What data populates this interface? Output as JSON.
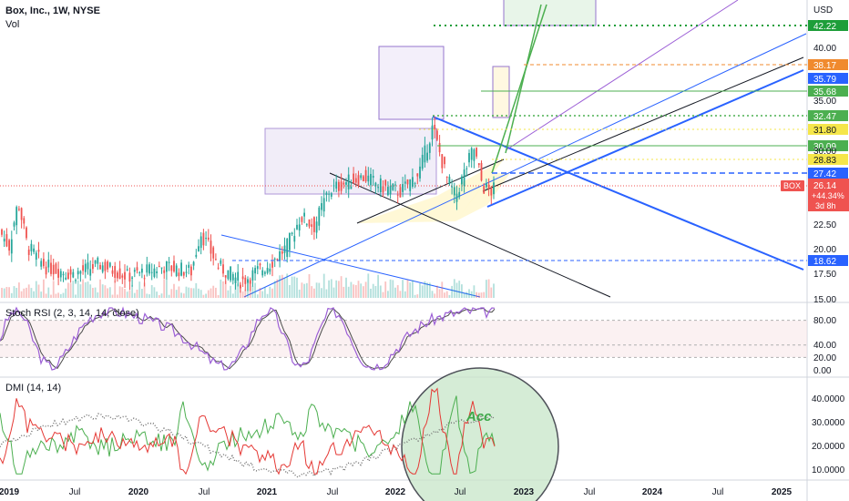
{
  "header": {
    "title": "Box, Inc., 1W, NYSE",
    "volume_label": "Vol",
    "currency": "USD",
    "rsi_label": "Stoch RSI (2, 3, 14, 14, close)",
    "dmi_label": "DMI (14, 14)",
    "annotation": "Acc"
  },
  "chart_data": {
    "type": "candlestick",
    "symbol": "BOX",
    "price_axis": {
      "ticks": [
        "40.00",
        "35.00",
        "30.00",
        "25.00",
        "22.50",
        "20.00",
        "17.50",
        "15.00"
      ],
      "ylim": [
        15,
        45
      ]
    },
    "rsi_axis": {
      "ticks": [
        "80.00",
        "40.00",
        "20.00",
        "0.00"
      ],
      "ylim": [
        0,
        100
      ]
    },
    "dmi_axis": {
      "ticks": [
        "40.0000",
        "30.0000",
        "20.0000",
        "10.0000"
      ],
      "ylim": [
        5,
        45
      ]
    },
    "time_axis": {
      "ticks": [
        "2019",
        "Jul",
        "2020",
        "Jul",
        "2021",
        "Jul",
        "2022",
        "Jul",
        "2023",
        "Jul",
        "2024",
        "Jul",
        "2025"
      ]
    },
    "last_price": {
      "symbol": "BOX",
      "price": "26.14",
      "change": "+44.34%",
      "countdown": "3d 8h"
    },
    "price_levels": [
      {
        "value": "42.22",
        "color": "#1e9e3a"
      },
      {
        "value": "38.17",
        "color": "#f08a2e"
      },
      {
        "value": "35.79",
        "color": "#2962ff"
      },
      {
        "value": "35.68",
        "color": "#4caf50"
      },
      {
        "value": "32.47",
        "color": "#4caf50"
      },
      {
        "value": "31.80",
        "color": "#f5e64a"
      },
      {
        "value": "30.09",
        "color": "#4caf50"
      },
      {
        "value": "28.83",
        "color": "#f5e64a"
      },
      {
        "value": "27.42",
        "color": "#2962ff"
      },
      {
        "value": "18.62",
        "color": "#2962ff"
      }
    ],
    "colors": {
      "up": "#26a69a",
      "down": "#ef5350",
      "rsi_k": "#9c5fd6",
      "rsi_d": "#4a4a4a",
      "dmi_plus": "#4caf50",
      "dmi_minus": "#e53935",
      "adx": "#757575"
    }
  }
}
